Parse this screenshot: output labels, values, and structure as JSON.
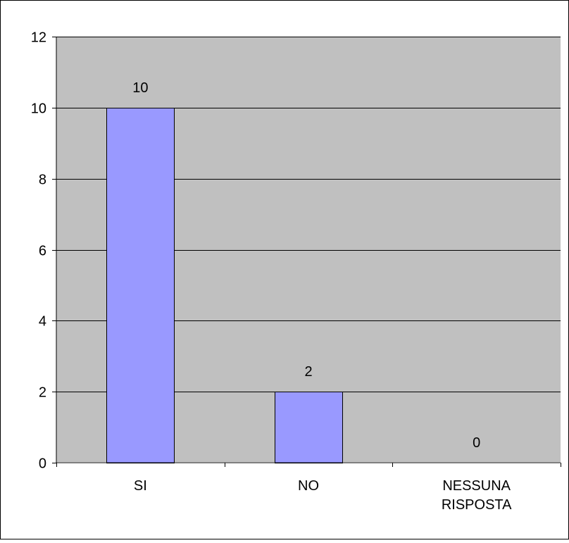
{
  "chart_data": {
    "type": "bar",
    "categories": [
      "SI",
      "NO",
      "NESSUNA RISPOSTA"
    ],
    "category_lines": [
      [
        "SI"
      ],
      [
        "NO"
      ],
      [
        "NESSUNA",
        "RISPOSTA"
      ]
    ],
    "values": [
      10,
      2,
      0
    ],
    "data_labels": [
      "10",
      "2",
      "0"
    ],
    "y_ticks": [
      "0",
      "2",
      "4",
      "6",
      "8",
      "10",
      "12"
    ],
    "ylim": [
      0,
      12
    ],
    "title": "",
    "xlabel": "",
    "ylabel": "",
    "grid": true,
    "legend": "none",
    "colors": {
      "bar_fill": "#9999ff",
      "plot_background": "#c0c0c0",
      "gridline": "#000000"
    }
  }
}
